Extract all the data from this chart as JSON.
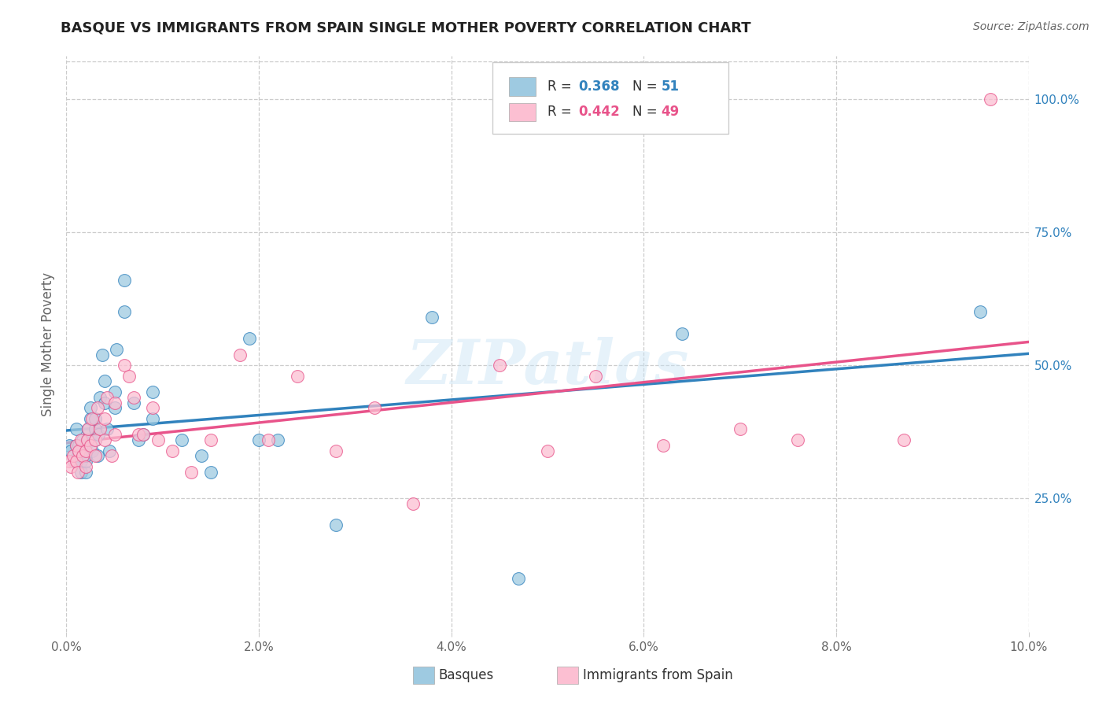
{
  "title": "BASQUE VS IMMIGRANTS FROM SPAIN SINGLE MOTHER POVERTY CORRELATION CHART",
  "source": "Source: ZipAtlas.com",
  "ylabel": "Single Mother Poverty",
  "legend_label1": "Basques",
  "legend_label2": "Immigrants from Spain",
  "watermark": "ZIPatlas",
  "blue_color": "#9ecae1",
  "pink_color": "#fcbfd2",
  "blue_line_color": "#3182bd",
  "pink_line_color": "#e8538a",
  "basque_x": [
    0.0003,
    0.0005,
    0.0008,
    0.001,
    0.001,
    0.0012,
    0.0013,
    0.0015,
    0.0015,
    0.0017,
    0.002,
    0.002,
    0.002,
    0.002,
    0.0022,
    0.0023,
    0.0025,
    0.0025,
    0.0027,
    0.003,
    0.003,
    0.003,
    0.0032,
    0.0033,
    0.0035,
    0.0037,
    0.004,
    0.004,
    0.0042,
    0.0045,
    0.005,
    0.005,
    0.0052,
    0.006,
    0.006,
    0.007,
    0.0075,
    0.008,
    0.009,
    0.009,
    0.012,
    0.014,
    0.015,
    0.019,
    0.02,
    0.022,
    0.028,
    0.038,
    0.047,
    0.064,
    0.095
  ],
  "basque_y": [
    0.35,
    0.34,
    0.32,
    0.35,
    0.38,
    0.33,
    0.35,
    0.3,
    0.32,
    0.36,
    0.3,
    0.32,
    0.33,
    0.35,
    0.36,
    0.38,
    0.4,
    0.42,
    0.34,
    0.36,
    0.38,
    0.4,
    0.33,
    0.37,
    0.44,
    0.52,
    0.43,
    0.47,
    0.38,
    0.34,
    0.42,
    0.45,
    0.53,
    0.6,
    0.66,
    0.43,
    0.36,
    0.37,
    0.4,
    0.45,
    0.36,
    0.33,
    0.3,
    0.55,
    0.36,
    0.36,
    0.2,
    0.59,
    0.1,
    0.56,
    0.6
  ],
  "immigrant_x": [
    0.0003,
    0.0005,
    0.0007,
    0.001,
    0.001,
    0.0012,
    0.0013,
    0.0015,
    0.0017,
    0.002,
    0.002,
    0.0022,
    0.0023,
    0.0025,
    0.0027,
    0.003,
    0.003,
    0.0032,
    0.0035,
    0.004,
    0.004,
    0.0042,
    0.0047,
    0.005,
    0.005,
    0.006,
    0.0065,
    0.007,
    0.0075,
    0.008,
    0.009,
    0.0095,
    0.011,
    0.013,
    0.015,
    0.018,
    0.021,
    0.024,
    0.028,
    0.032,
    0.036,
    0.045,
    0.05,
    0.055,
    0.062,
    0.07,
    0.076,
    0.087,
    0.096
  ],
  "immigrant_y": [
    0.32,
    0.31,
    0.33,
    0.32,
    0.35,
    0.3,
    0.34,
    0.36,
    0.33,
    0.31,
    0.34,
    0.36,
    0.38,
    0.35,
    0.4,
    0.33,
    0.36,
    0.42,
    0.38,
    0.36,
    0.4,
    0.44,
    0.33,
    0.37,
    0.43,
    0.5,
    0.48,
    0.44,
    0.37,
    0.37,
    0.42,
    0.36,
    0.34,
    0.3,
    0.36,
    0.52,
    0.36,
    0.48,
    0.34,
    0.42,
    0.24,
    0.5,
    0.34,
    0.48,
    0.35,
    0.38,
    0.36,
    0.36,
    1.0
  ],
  "xmin": 0.0,
  "xmax": 0.1,
  "ymin": 0.0,
  "ymax": 1.08,
  "yticks": [
    0.25,
    0.5,
    0.75,
    1.0
  ],
  "xticks": [
    0.0,
    0.02,
    0.04,
    0.06,
    0.08,
    0.1
  ]
}
